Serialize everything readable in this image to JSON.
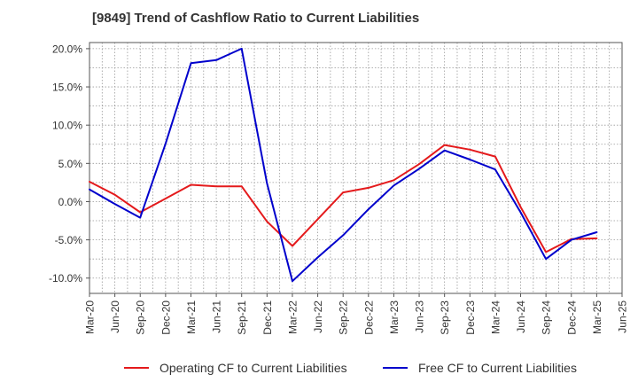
{
  "chart_data": {
    "type": "line",
    "title": "[9849]  Trend of Cashflow Ratio to Current Liabilities",
    "xlabel": "",
    "ylabel": "",
    "categories": [
      "Mar-20",
      "Jun-20",
      "Sep-20",
      "Dec-20",
      "Mar-21",
      "Jun-21",
      "Sep-21",
      "Dec-21",
      "Mar-22",
      "Jun-22",
      "Sep-22",
      "Dec-22",
      "Mar-23",
      "Jun-23",
      "Sep-23",
      "Dec-23",
      "Mar-24",
      "Jun-24",
      "Sep-24",
      "Dec-24",
      "Mar-25",
      "Jun-25"
    ],
    "ylim": [
      -12,
      20.8
    ],
    "yticks": [
      -10,
      -5,
      0,
      5,
      10,
      15,
      20
    ],
    "ytick_labels": [
      "-10.0%",
      "-5.0%",
      "0.0%",
      "5.0%",
      "10.0%",
      "15.0%",
      "20.0%"
    ],
    "grid": true,
    "legend_position": "bottom",
    "series": [
      {
        "name": "Operating CF to Current Liabilities",
        "color": "#e41a1c",
        "values": [
          2.6,
          0.9,
          -1.4,
          0.4,
          2.2,
          2.0,
          2.0,
          -2.6,
          -5.8,
          -2.3,
          1.2,
          1.8,
          2.8,
          4.9,
          7.4,
          6.8,
          5.9,
          -0.7,
          -6.6,
          -4.9,
          -4.8,
          null
        ]
      },
      {
        "name": "Free CF to Current Liabilities",
        "color": "#0000cc",
        "values": [
          1.6,
          -0.3,
          -2.1,
          7.6,
          18.1,
          18.5,
          20.0,
          2.4,
          -10.4,
          -7.3,
          -4.4,
          -1.0,
          2.1,
          4.3,
          6.7,
          5.5,
          4.2,
          -1.4,
          -7.5,
          -5.0,
          -4.0,
          null
        ]
      }
    ]
  }
}
